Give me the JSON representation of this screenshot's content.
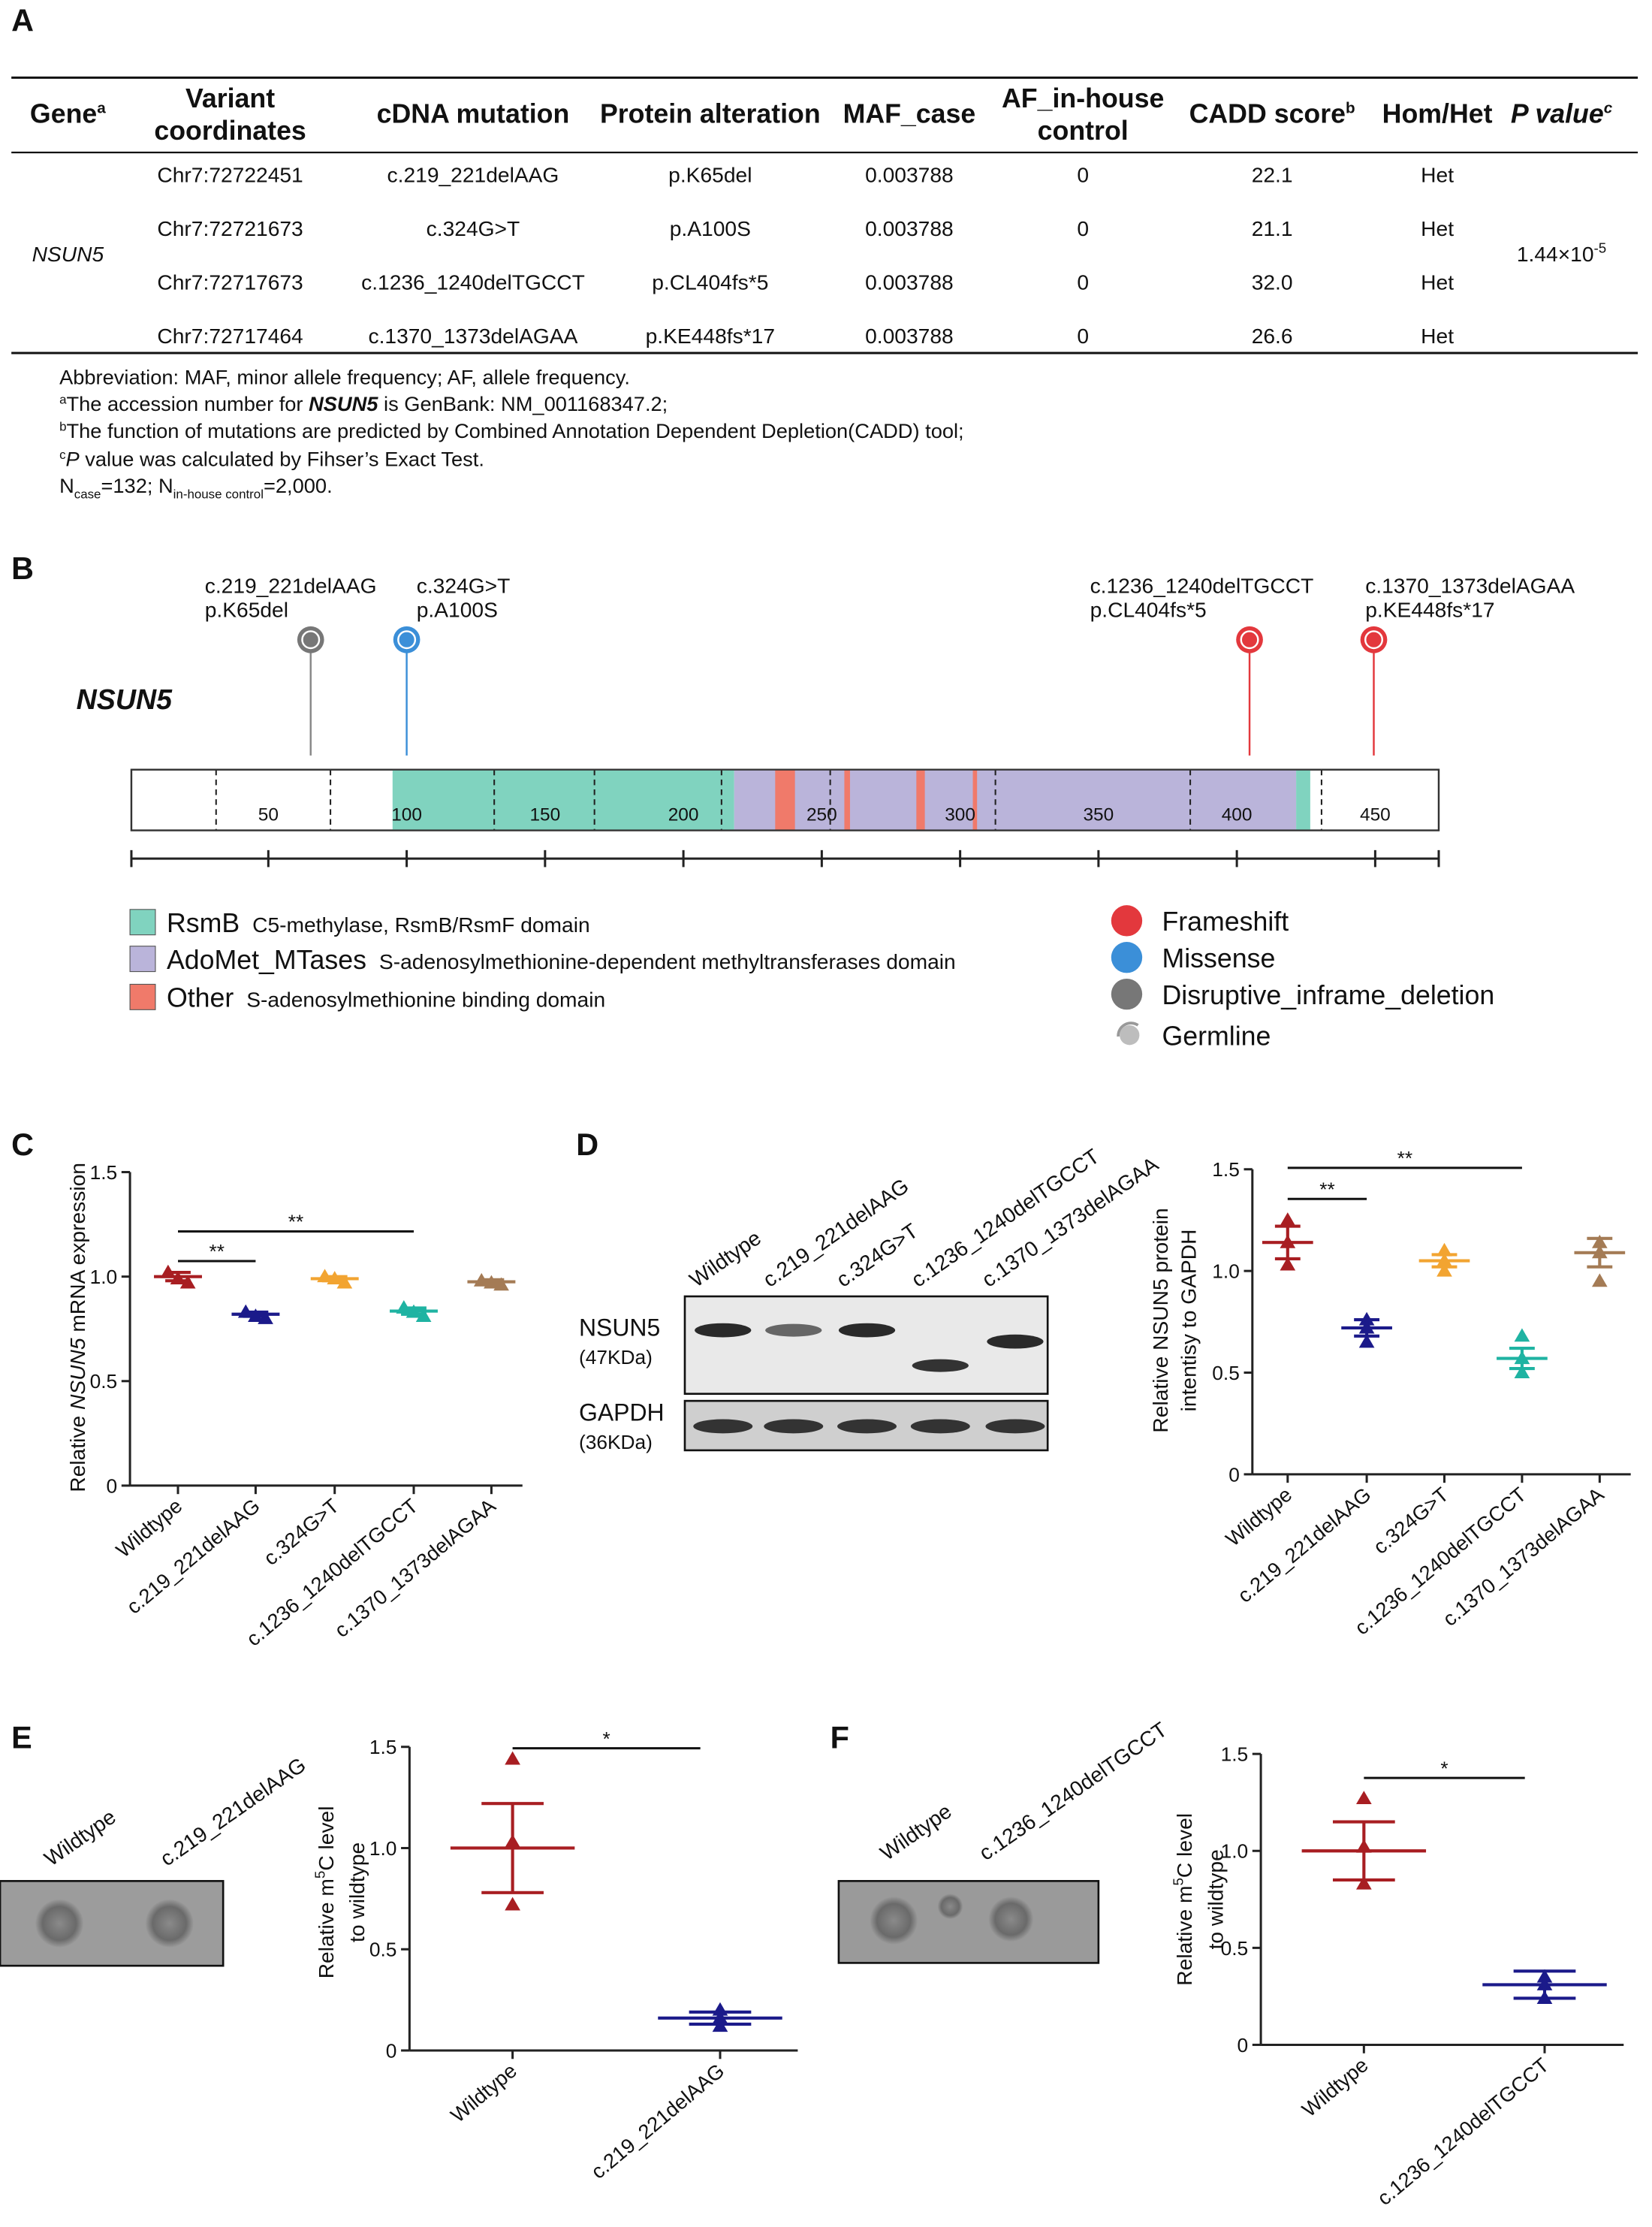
{
  "panel_labels": [
    "A",
    "B",
    "C",
    "D",
    "E",
    "F"
  ],
  "table": {
    "header": [
      {
        "text": "Gene",
        "sup": "a"
      },
      {
        "lines": [
          "Variant",
          "coordinates"
        ]
      },
      {
        "text": "cDNA mutation"
      },
      {
        "text": "Protein alteration"
      },
      {
        "text": "MAF_case"
      },
      {
        "lines": [
          "AF_in-house",
          "control"
        ]
      },
      {
        "text": "CADD score",
        "sup": "b"
      },
      {
        "text": "Hom/Het"
      },
      {
        "text": "P value",
        "sup": "c"
      }
    ],
    "gene": "NSUN5",
    "rows": [
      [
        "Chr7:72722451",
        "c.219_221delAAG",
        "p.K65del",
        "0.003788",
        "0",
        "22.1",
        "Het"
      ],
      [
        "Chr7:72721673",
        "c.324G>T",
        "p.A100S",
        "0.003788",
        "0",
        "21.1",
        "Het"
      ],
      [
        "Chr7:72717673",
        "c.1236_1240delTGCCT",
        "p.CL404fs*5",
        "0.003788",
        "0",
        "32.0",
        "Het"
      ],
      [
        "Chr7:72717464",
        "c.1370_1373delAGAA",
        "p.KE448fs*17",
        "0.003788",
        "0",
        "26.6",
        "Het"
      ]
    ],
    "p_value": {
      "text": "1.44×10",
      "sup": "-5"
    },
    "footnotes": [
      {
        "text": "Abbreviation: MAF, minor allele frequency; AF, allele frequency."
      },
      {
        "sup": "a",
        "parts": [
          "The accession number for ",
          "NSUN5",
          " is GenBank: NM_001168347.2;"
        ]
      },
      {
        "sup": "b",
        "parts": [
          "The function of mutations are predicted by Combined Annotation Dependent Depletion(CADD) tool;"
        ]
      },
      {
        "sup": "c",
        "parts": [
          "P",
          " value was calculated by Fihser’s Exact Test."
        ]
      },
      {
        "parts": [
          "N",
          "case",
          "=132; N",
          "in-house control",
          "=2,000."
        ]
      }
    ]
  },
  "diagram": {
    "gene": "NSUN5",
    "mutations": [
      {
        "cdna": "c.219_221delAAG",
        "protein": "p.K65del",
        "type": 2
      },
      {
        "cdna": "c.324G>T",
        "protein": "p.A100S",
        "type": 1
      },
      {
        "cdna": "c.1236_1240delTGCCT",
        "protein": "p.CL404fs*5",
        "type": 0
      },
      {
        "cdna": "c.1370_1373delAGAA",
        "protein": "p.KE448fs*17",
        "type": 0
      }
    ],
    "ticks": [
      50,
      100,
      150,
      200,
      250,
      300,
      350,
      400,
      450
    ],
    "domains": [
      {
        "name": "RsmB",
        "description": "C5-methylase, RsmB/RsmF domain",
        "color": "#80d3bf"
      },
      {
        "name": "AdoMet_MTases",
        "description": "S-adenosylmethionine-dependent methyltransferases domain",
        "color": "#bab4da"
      },
      {
        "name": "Other",
        "description": "S-adenosylmethionine binding domain",
        "color": "#f07a6a"
      }
    ],
    "variant_types": [
      {
        "name": "Frameshift",
        "color": "#e3383d"
      },
      {
        "name": "Missense",
        "color": "#3b8fd8"
      },
      {
        "name": "Disruptive_inframe_deletion",
        "color": "#777777"
      },
      {
        "name": "Germline",
        "color": "#bdbdbd"
      }
    ]
  },
  "blots": [
    {
      "lanes": [
        "Wildtype",
        "c.219_221delAAG",
        "c.324G>T",
        "c.1236_1240delTGCCT",
        "c.1370_1373delAGAA"
      ],
      "bands": [
        {
          "name": "NSUN5",
          "size": "(47KDa)"
        },
        {
          "name": "GAPDH",
          "size": "(36KDa)"
        }
      ]
    },
    {
      "lanes": [
        "Wildtype",
        "c.219_221delAAG"
      ]
    },
    {
      "lanes": [
        "Wildtype",
        "c.1236_1240delTGCCT"
      ]
    }
  ],
  "chart_data": [
    {
      "type": "dot",
      "ylabel": [
        "Relative ",
        "NSUN5",
        " mRNA expression"
      ],
      "categories": [
        "Wildtype",
        "c.219_221delAAG",
        "c.324G>T",
        "c.1236_1240delTGCCT",
        "c.1370_1373delAGAA"
      ],
      "colors": [
        "#a81e22",
        "#1b1a8a",
        "#f2a431",
        "#1fb3a2",
        "#a47b55"
      ],
      "points": [
        [
          1.02,
          0.99,
          0.97
        ],
        [
          0.83,
          0.81,
          0.8
        ],
        [
          1.0,
          0.99,
          0.97
        ],
        [
          0.85,
          0.83,
          0.81
        ],
        [
          0.98,
          0.97,
          0.96
        ]
      ],
      "means": [
        1.0,
        0.82,
        0.99,
        0.835,
        0.975
      ],
      "errors": [
        0.02,
        0.01,
        0.01,
        0.015,
        0.01
      ],
      "ylim": [
        0,
        1.5
      ],
      "yticks": [
        0,
        0.5,
        {
          "value": 1,
          "label": "1.0"
        },
        1.5
      ],
      "significance": [
        {
          "label": "**",
          "groups": [
            0,
            1
          ]
        },
        {
          "label": "**",
          "groups": [
            0,
            3
          ]
        }
      ]
    },
    {
      "type": "dot",
      "ylabel": [
        "Relative NSUN5 protein",
        "intentisy to GAPDH"
      ],
      "categories": [
        "Wildtype",
        "c.219_221delAAG",
        "c.324G>T",
        "c.1236_1240delTGCCT",
        "c.1370_1373delAGAA"
      ],
      "colors": [
        "#a81e22",
        "#1b1a8a",
        "#f2a431",
        "#1fb3a2",
        "#a47b55"
      ],
      "points": [
        [
          1.25,
          1.14,
          1.03
        ],
        [
          0.76,
          0.72,
          0.65
        ],
        [
          1.1,
          1.05,
          1.0
        ],
        [
          0.68,
          0.57,
          0.5
        ],
        [
          1.14,
          1.09,
          0.95
        ]
      ],
      "means": [
        1.14,
        0.72,
        1.05,
        0.57,
        1.09
      ],
      "errors": [
        0.08,
        0.04,
        0.03,
        0.05,
        0.07
      ],
      "ylim": [
        0,
        1.5
      ],
      "yticks": [
        0,
        0.5,
        {
          "value": 1,
          "label": "1.0"
        },
        1.5
      ],
      "significance": [
        {
          "label": "**",
          "groups": [
            0,
            1
          ]
        },
        {
          "label": "**",
          "groups": [
            0,
            3
          ]
        }
      ]
    },
    {
      "type": "dot",
      "ylabel": [
        "Relative m",
        "5",
        "C level",
        "to wildtype"
      ],
      "categories": [
        "Wildtype",
        "c.219_221delAAG"
      ],
      "colors": [
        "#a81e22",
        "#1b1a8a"
      ],
      "points": [
        [
          1.44,
          1.03,
          0.72
        ],
        [
          0.2,
          0.16,
          0.12
        ]
      ],
      "means": [
        1.0,
        0.16
      ],
      "errors": [
        0.22,
        0.03
      ],
      "ylim": [
        0,
        1.5
      ],
      "yticks": [
        0,
        0.5,
        {
          "value": 1,
          "label": "1.0"
        },
        1.5
      ],
      "significance": [
        {
          "label": "*",
          "groups": [
            0,
            1
          ]
        }
      ]
    },
    {
      "type": "dot",
      "ylabel": [
        "Relative m",
        "5",
        "C level",
        "to wildtype"
      ],
      "categories": [
        "Wildtype",
        "c.1236_1240delTGCCT"
      ],
      "colors": [
        "#a81e22",
        "#1b1a8a"
      ],
      "points": [
        [
          1.27,
          1.02,
          0.83
        ],
        [
          0.35,
          0.31,
          0.24
        ]
      ],
      "means": [
        1.0,
        0.31
      ],
      "errors": [
        0.15,
        0.07
      ],
      "ylim": [
        0,
        1.5
      ],
      "yticks": [
        0,
        0.5,
        {
          "value": 1,
          "label": "1.0"
        },
        1.5
      ],
      "significance": [
        {
          "label": "*",
          "groups": [
            0,
            1
          ]
        }
      ]
    }
  ]
}
